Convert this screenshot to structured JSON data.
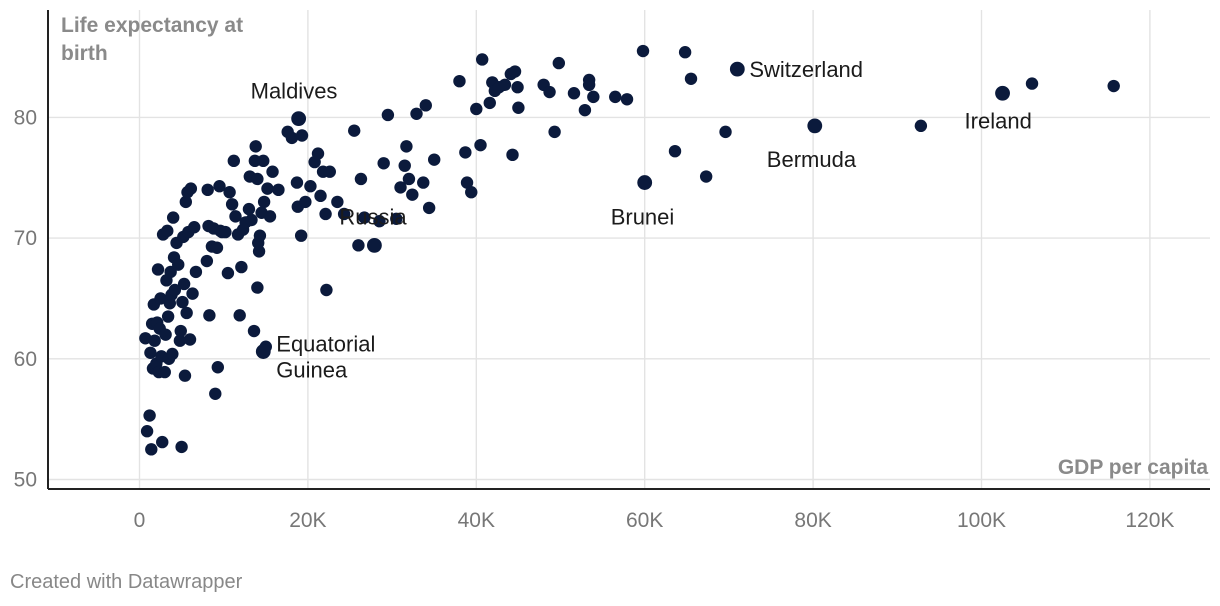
{
  "chart_data": {
    "type": "scatter",
    "title": "",
    "xlabel": "GDP per capita",
    "ylabel": "Life expectancy at birth",
    "ylabel_lines": [
      "Life expectancy at",
      "birth"
    ],
    "xlim": [
      -11000,
      126000
    ],
    "ylim": [
      49,
      88
    ],
    "x_ticks": [
      0,
      20000,
      40000,
      60000,
      80000,
      100000,
      120000
    ],
    "x_tick_labels": [
      "0",
      "20K",
      "40K",
      "60K",
      "80K",
      "100K",
      "120K"
    ],
    "y_ticks": [
      50,
      60,
      70,
      80
    ],
    "y_tick_labels": [
      "50",
      "60",
      "70",
      "80"
    ],
    "grid": true,
    "colors": {
      "point": "#0b1a3c",
      "grid": "#e3e3e3",
      "axis": "#222222",
      "tick_text": "#777777",
      "axis_title": "#8a8a8a",
      "footer": "#888888"
    },
    "annotations": [
      {
        "text": "Maldives",
        "lines": [
          "Maldives"
        ],
        "x": 18900,
        "y": 79.9
      },
      {
        "text": "Switzerland",
        "lines": [
          "Switzerland"
        ],
        "x": 71000,
        "y": 84.0
      },
      {
        "text": "Ireland",
        "lines": [
          "Ireland"
        ],
        "x": 102500,
        "y": 82.0
      },
      {
        "text": "Bermuda",
        "lines": [
          "Bermuda"
        ],
        "x": 80200,
        "y": 79.3
      },
      {
        "text": "Brunei",
        "lines": [
          "Brunei"
        ],
        "x": 60000,
        "y": 74.6
      },
      {
        "text": "Russia",
        "lines": [
          "Russia"
        ],
        "x": 27900,
        "y": 69.4
      },
      {
        "text": "Equatorial Guinea",
        "lines": [
          "Equatorial",
          "Guinea"
        ],
        "x": 14700,
        "y": 60.6
      }
    ],
    "points": [
      [
        700,
        61.7
      ],
      [
        900,
        54.0
      ],
      [
        1200,
        55.3
      ],
      [
        1400,
        52.5
      ],
      [
        1600,
        59.2
      ],
      [
        1300,
        60.5
      ],
      [
        1500,
        62.9
      ],
      [
        1700,
        64.5
      ],
      [
        1800,
        61.5
      ],
      [
        2000,
        59.6
      ],
      [
        2100,
        63.0
      ],
      [
        2200,
        67.4
      ],
      [
        2300,
        58.9
      ],
      [
        2400,
        62.5
      ],
      [
        2500,
        65.0
      ],
      [
        2600,
        60.2
      ],
      [
        2800,
        70.3
      ],
      [
        2700,
        53.1
      ],
      [
        3000,
        58.9
      ],
      [
        3100,
        62.0
      ],
      [
        3200,
        66.5
      ],
      [
        3300,
        70.6
      ],
      [
        3400,
        63.5
      ],
      [
        3500,
        60.0
      ],
      [
        3600,
        64.6
      ],
      [
        3700,
        67.2
      ],
      [
        3800,
        65.3
      ],
      [
        3900,
        60.4
      ],
      [
        4000,
        71.7
      ],
      [
        4100,
        68.4
      ],
      [
        4200,
        65.7
      ],
      [
        4400,
        69.6
      ],
      [
        4600,
        67.8
      ],
      [
        4800,
        61.5
      ],
      [
        4900,
        62.3
      ],
      [
        5000,
        52.7
      ],
      [
        5100,
        64.7
      ],
      [
        5200,
        70.1
      ],
      [
        5300,
        66.2
      ],
      [
        5400,
        58.6
      ],
      [
        5500,
        73.0
      ],
      [
        5600,
        63.8
      ],
      [
        5700,
        73.8
      ],
      [
        5800,
        70.5
      ],
      [
        6000,
        61.6
      ],
      [
        6100,
        74.1
      ],
      [
        6300,
        65.4
      ],
      [
        6500,
        70.9
      ],
      [
        6700,
        67.2
      ],
      [
        8000,
        68.1
      ],
      [
        8100,
        74.0
      ],
      [
        8200,
        71.0
      ],
      [
        8300,
        63.6
      ],
      [
        8600,
        69.3
      ],
      [
        8800,
        70.8
      ],
      [
        9000,
        57.1
      ],
      [
        9200,
        69.2
      ],
      [
        9300,
        59.3
      ],
      [
        9500,
        74.3
      ],
      [
        9600,
        70.6
      ],
      [
        9800,
        70.5
      ],
      [
        10200,
        70.5
      ],
      [
        10500,
        67.1
      ],
      [
        10700,
        73.8
      ],
      [
        11000,
        72.8
      ],
      [
        11200,
        76.4
      ],
      [
        11400,
        71.8
      ],
      [
        11700,
        70.3
      ],
      [
        11900,
        63.6
      ],
      [
        12100,
        67.6
      ],
      [
        12300,
        70.7
      ],
      [
        12600,
        71.3
      ],
      [
        13000,
        72.4
      ],
      [
        13100,
        75.1
      ],
      [
        13300,
        71.5
      ],
      [
        13600,
        62.3
      ],
      [
        13700,
        76.4
      ],
      [
        13800,
        77.6
      ],
      [
        14000,
        74.9
      ],
      [
        14000,
        65.9
      ],
      [
        14100,
        69.6
      ],
      [
        14200,
        68.9
      ],
      [
        14300,
        70.2
      ],
      [
        14500,
        72.1
      ],
      [
        14700,
        76.4
      ],
      [
        14800,
        73.0
      ],
      [
        14700,
        60.6
      ],
      [
        15000,
        61.0
      ],
      [
        15200,
        74.1
      ],
      [
        15500,
        71.8
      ],
      [
        15800,
        75.5
      ],
      [
        16500,
        74.0
      ],
      [
        17600,
        78.8
      ],
      [
        18100,
        78.3
      ],
      [
        18700,
        74.6
      ],
      [
        18900,
        79.9
      ],
      [
        18800,
        72.6
      ],
      [
        19200,
        70.2
      ],
      [
        19300,
        78.5
      ],
      [
        19700,
        73.0
      ],
      [
        20300,
        74.3
      ],
      [
        20800,
        76.3
      ],
      [
        21200,
        77.0
      ],
      [
        21500,
        73.5
      ],
      [
        21800,
        75.5
      ],
      [
        22100,
        72.0
      ],
      [
        22200,
        65.7
      ],
      [
        22600,
        75.5
      ],
      [
        23500,
        73.0
      ],
      [
        24300,
        72.0
      ],
      [
        25500,
        78.9
      ],
      [
        26000,
        69.4
      ],
      [
        26300,
        74.9
      ],
      [
        26700,
        71.7
      ],
      [
        27900,
        69.4
      ],
      [
        28500,
        71.4
      ],
      [
        29000,
        76.2
      ],
      [
        29500,
        80.2
      ],
      [
        30500,
        71.6
      ],
      [
        31000,
        74.2
      ],
      [
        31500,
        76.0
      ],
      [
        31700,
        77.6
      ],
      [
        32000,
        74.9
      ],
      [
        32400,
        73.6
      ],
      [
        32900,
        80.3
      ],
      [
        33700,
        74.6
      ],
      [
        34000,
        81.0
      ],
      [
        34400,
        72.5
      ],
      [
        35000,
        76.5
      ],
      [
        38000,
        83.0
      ],
      [
        38700,
        77.1
      ],
      [
        38900,
        74.6
      ],
      [
        39400,
        73.8
      ],
      [
        40000,
        80.7
      ],
      [
        40500,
        77.7
      ],
      [
        40700,
        84.8
      ],
      [
        41600,
        81.2
      ],
      [
        41900,
        82.9
      ],
      [
        42200,
        82.2
      ],
      [
        42700,
        82.5
      ],
      [
        43400,
        82.7
      ],
      [
        44100,
        83.6
      ],
      [
        44300,
        76.9
      ],
      [
        44600,
        83.8
      ],
      [
        44900,
        82.5
      ],
      [
        45000,
        80.8
      ],
      [
        48000,
        82.7
      ],
      [
        48700,
        82.1
      ],
      [
        49300,
        78.8
      ],
      [
        49800,
        84.5
      ],
      [
        51600,
        82.0
      ],
      [
        52900,
        80.6
      ],
      [
        53400,
        83.1
      ],
      [
        53400,
        82.7
      ],
      [
        53900,
        81.7
      ],
      [
        56500,
        81.7
      ],
      [
        57900,
        81.5
      ],
      [
        59800,
        85.5
      ],
      [
        60000,
        74.6
      ],
      [
        63600,
        77.2
      ],
      [
        64800,
        85.4
      ],
      [
        65500,
        83.2
      ],
      [
        67300,
        75.1
      ],
      [
        69600,
        78.8
      ],
      [
        71000,
        84.0
      ],
      [
        80200,
        79.3
      ],
      [
        92800,
        79.3
      ],
      [
        102500,
        82.0
      ],
      [
        106000,
        82.8
      ],
      [
        115700,
        82.6
      ]
    ],
    "footer": "Created with Datawrapper"
  }
}
